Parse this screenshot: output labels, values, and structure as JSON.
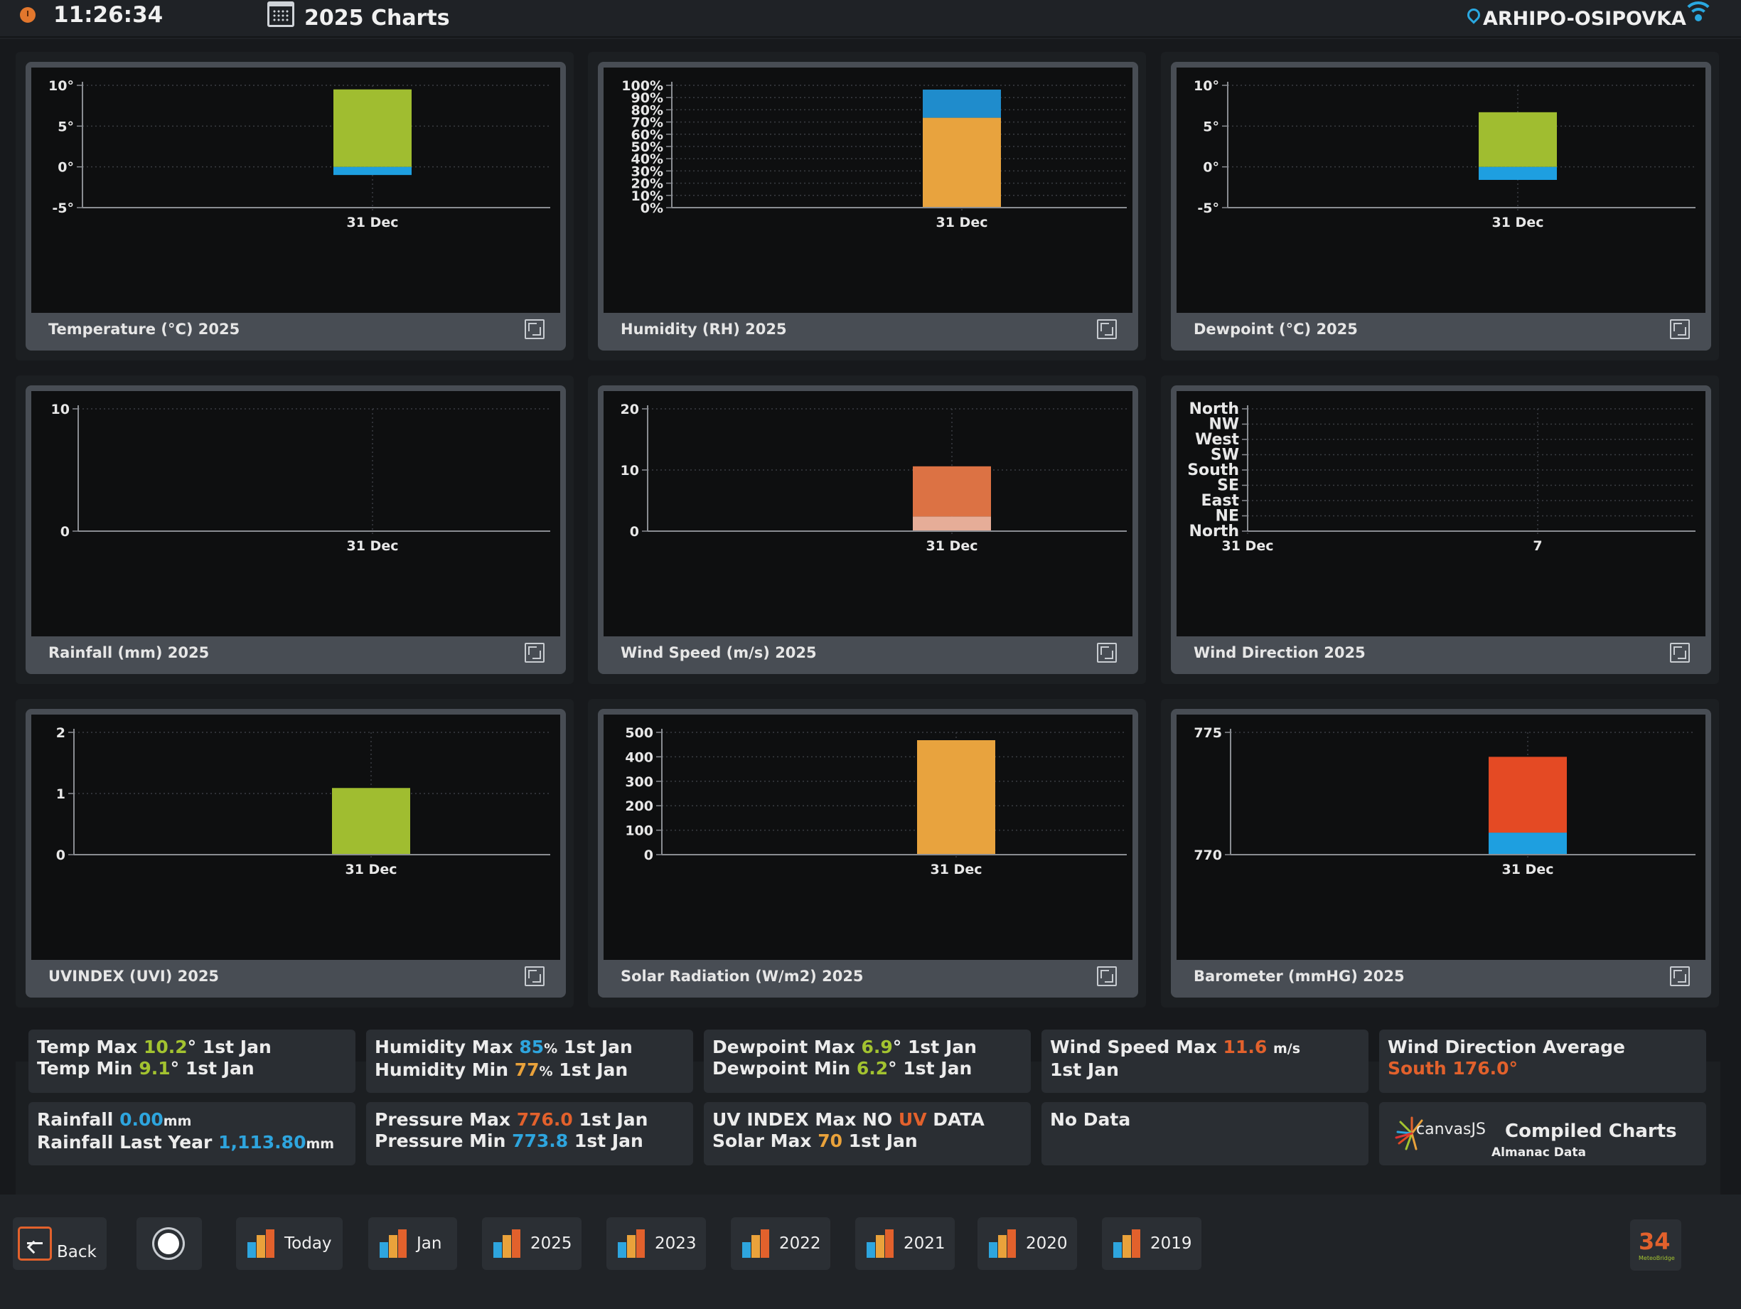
{
  "header": {
    "time": "11:26:34",
    "title": "2025 Charts",
    "location": "ARHIPO-OSIPOVKA"
  },
  "charts": [
    {
      "id": "temperature",
      "title": "Temperature (°C) 2025",
      "chart_data": {
        "type": "bar",
        "categories": [
          "31 Dec"
        ],
        "ylim": [
          -5,
          10
        ],
        "yticks": [
          {
            "v": 10,
            "label": "10°"
          },
          {
            "v": 5,
            "label": "5°"
          },
          {
            "v": 0,
            "label": "0°"
          },
          {
            "v": -5,
            "label": "-5°"
          }
        ],
        "bars": [
          {
            "category": "31 Dec",
            "segments": [
              {
                "from": -1,
                "to": 0,
                "color": "#1e9fe0"
              },
              {
                "from": 0,
                "to": 9.5,
                "color": "#a0bd30"
              }
            ]
          }
        ]
      }
    },
    {
      "id": "humidity",
      "title": "Humidity (RH) 2025",
      "chart_data": {
        "type": "bar",
        "categories": [
          "31 Dec"
        ],
        "ylim": [
          0,
          100
        ],
        "yticks": [
          {
            "v": 100,
            "label": "100%"
          },
          {
            "v": 90,
            "label": "90%"
          },
          {
            "v": 80,
            "label": "80%"
          },
          {
            "v": 70,
            "label": "70%"
          },
          {
            "v": 60,
            "label": "60%"
          },
          {
            "v": 50,
            "label": "50%"
          },
          {
            "v": 40,
            "label": "40%"
          },
          {
            "v": 30,
            "label": "30%"
          },
          {
            "v": 20,
            "label": "20%"
          },
          {
            "v": 10,
            "label": "10%"
          },
          {
            "v": 0,
            "label": "0%"
          }
        ],
        "bars": [
          {
            "category": "31 Dec",
            "segments": [
              {
                "from": 0,
                "to": 73.5,
                "color": "#e8a33e"
              },
              {
                "from": 73.5,
                "to": 96.5,
                "color": "#1f8ccc"
              }
            ]
          }
        ]
      }
    },
    {
      "id": "dewpoint",
      "title": "Dewpoint (°C) 2025",
      "chart_data": {
        "type": "bar",
        "categories": [
          "31 Dec"
        ],
        "ylim": [
          -5,
          10
        ],
        "yticks": [
          {
            "v": 10,
            "label": "10°"
          },
          {
            "v": 5,
            "label": "5°"
          },
          {
            "v": 0,
            "label": "0°"
          },
          {
            "v": -5,
            "label": "-5°"
          }
        ],
        "bars": [
          {
            "category": "31 Dec",
            "segments": [
              {
                "from": -1.6,
                "to": 0,
                "color": "#1e9fe0"
              },
              {
                "from": 0,
                "to": 6.7,
                "color": "#a0bd30"
              }
            ]
          }
        ]
      }
    },
    {
      "id": "rainfall",
      "title": "Rainfall (mm) 2025",
      "chart_data": {
        "type": "bar",
        "categories": [
          "31 Dec"
        ],
        "ylim": [
          0,
          10
        ],
        "yticks": [
          {
            "v": 10,
            "label": "10"
          },
          {
            "v": 0,
            "label": "0"
          }
        ],
        "bars": []
      }
    },
    {
      "id": "windspeed",
      "title": "Wind Speed (m/s) 2025",
      "chart_data": {
        "type": "bar",
        "categories": [
          "31 Dec"
        ],
        "ylim": [
          0,
          20
        ],
        "yticks": [
          {
            "v": 20,
            "label": "20"
          },
          {
            "v": 10,
            "label": "10"
          },
          {
            "v": 0,
            "label": "0"
          }
        ],
        "bars": [
          {
            "category": "31 Dec",
            "segments": [
              {
                "from": 0,
                "to": 2.4,
                "color": "#e6ad98"
              },
              {
                "from": 2.4,
                "to": 10.6,
                "color": "#dc7244"
              }
            ]
          }
        ]
      }
    },
    {
      "id": "winddirection",
      "title": "Wind Direction 2025",
      "chart_data": {
        "type": "scatter",
        "categories": [
          "31 Dec",
          "7"
        ],
        "ylim": [
          0,
          8
        ],
        "yticks": [
          {
            "v": 8,
            "label": "North"
          },
          {
            "v": 7,
            "label": "NW"
          },
          {
            "v": 6,
            "label": "West"
          },
          {
            "v": 5,
            "label": "SW"
          },
          {
            "v": 4,
            "label": "South"
          },
          {
            "v": 3,
            "label": "SE"
          },
          {
            "v": 2,
            "label": "East"
          },
          {
            "v": 1,
            "label": "NE"
          },
          {
            "v": 0,
            "label": "North"
          }
        ],
        "bars": []
      }
    },
    {
      "id": "uvindex",
      "title": "UVINDEX (UVI) 2025",
      "chart_data": {
        "type": "bar",
        "categories": [
          "31 Dec"
        ],
        "ylim": [
          0,
          2
        ],
        "yticks": [
          {
            "v": 2,
            "label": "2"
          },
          {
            "v": 1,
            "label": "1"
          },
          {
            "v": 0,
            "label": "0"
          }
        ],
        "bars": [
          {
            "category": "31 Dec",
            "segments": [
              {
                "from": 0,
                "to": 1.09,
                "color": "#a0bd30"
              }
            ]
          }
        ]
      }
    },
    {
      "id": "solar",
      "title": "Solar Radiation (W/m2) 2025",
      "chart_data": {
        "type": "bar",
        "categories": [
          "31 Dec"
        ],
        "ylim": [
          0,
          500
        ],
        "yticks": [
          {
            "v": 500,
            "label": "500"
          },
          {
            "v": 400,
            "label": "400"
          },
          {
            "v": 300,
            "label": "300"
          },
          {
            "v": 200,
            "label": "200"
          },
          {
            "v": 100,
            "label": "100"
          },
          {
            "v": 0,
            "label": "0"
          }
        ],
        "bars": [
          {
            "category": "31 Dec",
            "segments": [
              {
                "from": 0,
                "to": 468,
                "color": "#e8a33e"
              }
            ]
          }
        ]
      }
    },
    {
      "id": "barometer",
      "title": "Barometer (mmHG) 2025",
      "chart_data": {
        "type": "bar",
        "categories": [
          "31 Dec"
        ],
        "ylim": [
          770,
          775
        ],
        "yticks": [
          {
            "v": 775,
            "label": "775"
          },
          {
            "v": 770,
            "label": "770"
          }
        ],
        "bars": [
          {
            "category": "31 Dec",
            "segments": [
              {
                "from": 770,
                "to": 770.9,
                "color": "#1e9fe0"
              },
              {
                "from": 770.9,
                "to": 774.0,
                "color": "#e44a24"
              }
            ]
          }
        ]
      }
    }
  ],
  "stats": {
    "temp": {
      "max_label": "Temp Max",
      "max_value": "10.2",
      "max_unit": "°",
      "max_date": "1st Jan",
      "min_label": "Temp Min",
      "min_value": "9.1",
      "min_unit": "°",
      "min_date": "1st Jan"
    },
    "humidity": {
      "max_label": "Humidity Max",
      "max_value": "85",
      "max_unit": "%",
      "max_date": "1st Jan",
      "min_label": "Humidity Min",
      "min_value": "77",
      "min_unit": "%",
      "min_date": "1st Jan"
    },
    "dewpoint": {
      "max_label": "Dewpoint Max",
      "max_value": "6.9",
      "max_unit": "°",
      "max_date": "1st Jan",
      "min_label": "Dewpoint Min",
      "min_value": "6.2",
      "min_unit": "°",
      "min_date": "1st Jan"
    },
    "wind_speed": {
      "label": "Wind Speed Max",
      "value": "11.6",
      "unit": "m/s",
      "date": "1st Jan"
    },
    "wind_direction": {
      "label": "Wind Direction Average",
      "value": "South 176.0°"
    },
    "rainfall": {
      "label": "Rainfall",
      "value": "0.00",
      "unit": "mm",
      "last_year_label": "Rainfall Last Year",
      "last_year_value": "1,113.80",
      "last_year_unit": "mm"
    },
    "pressure": {
      "max_label": "Pressure Max",
      "max_value": "776.0",
      "max_date": "1st Jan",
      "min_label": "Pressure Min",
      "min_value": "773.8",
      "min_date": "1st Jan"
    },
    "uv_solar": {
      "uv_label": "UV INDEX Max",
      "uv_no": "NO",
      "uv_uv": "UV",
      "uv_data": "DATA",
      "solar_label": "Solar Max",
      "solar_value": "70",
      "solar_date": "1st Jan"
    },
    "no_data": "No Data",
    "credits": {
      "canvas": "canvasJS",
      "compiled": "Compiled Charts",
      "almanac": "Almanac Data"
    }
  },
  "nav": {
    "back": "Back",
    "buttons": [
      "Today",
      "Jan",
      "2025",
      "2023",
      "2022",
      "2021",
      "2020",
      "2019"
    ],
    "badge_number": "34",
    "badge_sub": "MeteoBridge"
  },
  "colors": {
    "accent_blue": "#2ea5de",
    "accent_green": "#a3c330",
    "accent_orange": "#e9a23b",
    "accent_red": "#e2612c"
  }
}
